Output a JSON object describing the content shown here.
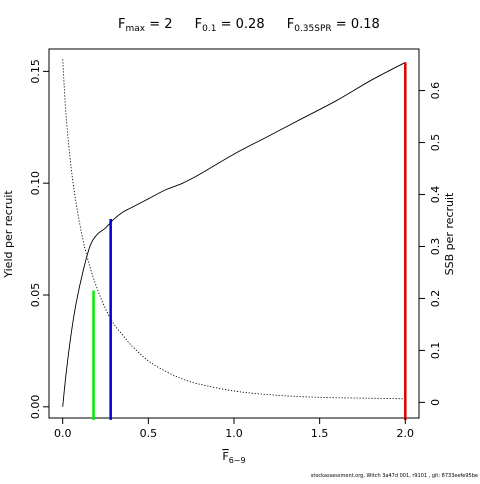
{
  "title": {
    "fmax": {
      "label": "F",
      "sub": "max",
      "value": " = 2"
    },
    "f01": {
      "label": "F",
      "sub": "0.1",
      "value": " = 0.28"
    },
    "f035": {
      "label": "F",
      "sub": "0.35SPR",
      "value": " = 0.18"
    }
  },
  "footer": "stockassessment.org,  Witch  3a47d  001,  r9101 ,  git:  8733eefe95be",
  "chart_data": {
    "type": "line",
    "xlabel": {
      "main": "F",
      "sub": "6−9"
    },
    "ylabel_left": "Yield per recruit",
    "ylabel_right": "SSB per recruit",
    "xlim": [
      -0.08,
      2.08
    ],
    "ylim_left": [
      -0.005,
      0.16
    ],
    "ylim_right": [
      -0.03,
      0.68
    ],
    "x_ticks": [
      0,
      0.5,
      1.0,
      1.5,
      2.0
    ],
    "x_tick_labels": [
      "0.0",
      "0.5",
      "1.0",
      "1.5",
      "2.0"
    ],
    "y_left_ticks": [
      0,
      0.05,
      0.1,
      0.15
    ],
    "y_left_tick_labels": [
      "0.00",
      "0.05",
      "0.10",
      "0.15"
    ],
    "y_right_ticks": [
      0,
      0.1,
      0.2,
      0.3,
      0.4,
      0.5,
      0.6
    ],
    "y_right_tick_labels": [
      "0",
      "0.1",
      "0.2",
      "0.3",
      "0.4",
      "0.5",
      "0.6"
    ],
    "series": [
      {
        "axis": "left",
        "style": "solid",
        "color": "#000000",
        "x": [
          0,
          0.02,
          0.05,
          0.08,
          0.12,
          0.16,
          0.2,
          0.25,
          0.3,
          0.35,
          0.4,
          0.5,
          0.6,
          0.7,
          0.8,
          1.0,
          1.2,
          1.4,
          1.6,
          1.8,
          2.0
        ],
        "y": [
          0,
          0.015,
          0.033,
          0.047,
          0.061,
          0.072,
          0.077,
          0.08,
          0.084,
          0.087,
          0.089,
          0.093,
          0.097,
          0.1,
          0.104,
          0.113,
          0.121,
          0.129,
          0.137,
          0.146,
          0.154
        ]
      },
      {
        "axis": "right",
        "style": "dotted",
        "color": "#000000",
        "x": [
          0,
          0.02,
          0.05,
          0.08,
          0.12,
          0.16,
          0.2,
          0.25,
          0.3,
          0.35,
          0.4,
          0.5,
          0.6,
          0.7,
          0.8,
          1.0,
          1.2,
          1.4,
          1.6,
          1.8,
          2.0
        ],
        "y": [
          0.66,
          0.55,
          0.45,
          0.38,
          0.31,
          0.26,
          0.22,
          0.18,
          0.15,
          0.13,
          0.11,
          0.08,
          0.06,
          0.045,
          0.035,
          0.022,
          0.015,
          0.011,
          0.009,
          0.008,
          0.007
        ]
      }
    ],
    "reference_lines": [
      {
        "x": 0.18,
        "y": 0.052,
        "color": "#00ee00"
      },
      {
        "x": 0.28,
        "y": 0.084,
        "color": "#0000cc"
      },
      {
        "x": 2.0,
        "y": 0.154,
        "color": "#dd0000"
      }
    ],
    "legend": "none",
    "grid": false
  }
}
